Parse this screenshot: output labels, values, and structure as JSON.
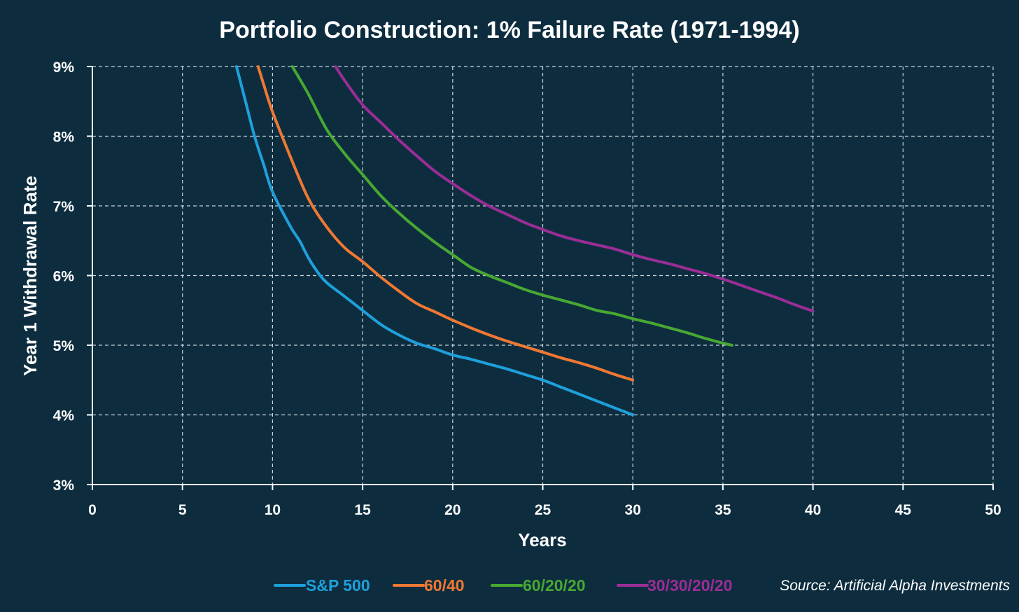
{
  "chart_data": {
    "type": "line",
    "title": "Portfolio Construction: 1% Failure Rate (1971-1994)",
    "xlabel": "Years",
    "ylabel": "Year 1 Withdrawal Rate",
    "xlim": [
      0,
      50
    ],
    "ylim": [
      3,
      9
    ],
    "xticks": [
      0,
      5,
      10,
      15,
      20,
      25,
      30,
      35,
      40,
      45,
      50
    ],
    "yticks": [
      3,
      4,
      5,
      6,
      7,
      8,
      9
    ],
    "ytick_labels": [
      "3%",
      "4%",
      "5%",
      "6%",
      "7%",
      "8%",
      "9%"
    ],
    "grid": true,
    "legend_position": "bottom",
    "source": "Source: Artificial Alpha Investments",
    "series": [
      {
        "name": "S&P 500",
        "color": "#1ea0dc",
        "points": [
          [
            8,
            9.0
          ],
          [
            8.5,
            8.5
          ],
          [
            9,
            8.0
          ],
          [
            9.5,
            7.6
          ],
          [
            10,
            7.2
          ],
          [
            11,
            6.7
          ],
          [
            11.5,
            6.5
          ],
          [
            12,
            6.25
          ],
          [
            12.5,
            6.05
          ],
          [
            13,
            5.9
          ],
          [
            14,
            5.7
          ],
          [
            15,
            5.5
          ],
          [
            16,
            5.3
          ],
          [
            17,
            5.15
          ],
          [
            18,
            5.03
          ],
          [
            19,
            4.95
          ],
          [
            20,
            4.86
          ],
          [
            21,
            4.8
          ],
          [
            22,
            4.73
          ],
          [
            23,
            4.66
          ],
          [
            24,
            4.58
          ],
          [
            25,
            4.5
          ],
          [
            26,
            4.4
          ],
          [
            27,
            4.3
          ],
          [
            28,
            4.2
          ],
          [
            29,
            4.1
          ],
          [
            30,
            4.0
          ]
        ]
      },
      {
        "name": "60/40",
        "color": "#f07832",
        "points": [
          [
            9.2,
            9.0
          ],
          [
            9.5,
            8.75
          ],
          [
            10,
            8.35
          ],
          [
            11,
            7.7
          ],
          [
            12,
            7.1
          ],
          [
            13,
            6.7
          ],
          [
            14,
            6.4
          ],
          [
            15,
            6.2
          ],
          [
            16,
            5.98
          ],
          [
            17,
            5.78
          ],
          [
            18,
            5.6
          ],
          [
            19,
            5.48
          ],
          [
            20,
            5.36
          ],
          [
            21,
            5.25
          ],
          [
            22,
            5.15
          ],
          [
            23,
            5.06
          ],
          [
            24,
            4.98
          ],
          [
            25,
            4.9
          ],
          [
            26,
            4.82
          ],
          [
            27,
            4.75
          ],
          [
            28,
            4.67
          ],
          [
            29,
            4.58
          ],
          [
            30,
            4.5
          ]
        ]
      },
      {
        "name": "60/20/20",
        "color": "#48a832",
        "points": [
          [
            11.1,
            9.0
          ],
          [
            12,
            8.6
          ],
          [
            13,
            8.1
          ],
          [
            14,
            7.75
          ],
          [
            15,
            7.45
          ],
          [
            16,
            7.15
          ],
          [
            17,
            6.9
          ],
          [
            18,
            6.68
          ],
          [
            19,
            6.48
          ],
          [
            20,
            6.3
          ],
          [
            21,
            6.12
          ],
          [
            22,
            6.0
          ],
          [
            23,
            5.9
          ],
          [
            24,
            5.8
          ],
          [
            25,
            5.72
          ],
          [
            26,
            5.65
          ],
          [
            27,
            5.58
          ],
          [
            28,
            5.5
          ],
          [
            29,
            5.45
          ],
          [
            30,
            5.38
          ],
          [
            31,
            5.32
          ],
          [
            32,
            5.25
          ],
          [
            33,
            5.18
          ],
          [
            34,
            5.1
          ],
          [
            35,
            5.03
          ],
          [
            35.5,
            5.0
          ]
        ]
      },
      {
        "name": "30/30/20/20",
        "color": "#9b2d96",
        "points": [
          [
            13.5,
            9.0
          ],
          [
            14,
            8.8
          ],
          [
            15,
            8.45
          ],
          [
            16,
            8.2
          ],
          [
            17,
            7.95
          ],
          [
            18,
            7.72
          ],
          [
            19,
            7.5
          ],
          [
            20,
            7.32
          ],
          [
            21,
            7.15
          ],
          [
            22,
            7.0
          ],
          [
            23,
            6.88
          ],
          [
            24,
            6.76
          ],
          [
            25,
            6.66
          ],
          [
            26,
            6.57
          ],
          [
            27,
            6.5
          ],
          [
            28,
            6.44
          ],
          [
            29,
            6.38
          ],
          [
            30,
            6.3
          ],
          [
            31,
            6.23
          ],
          [
            32,
            6.17
          ],
          [
            33,
            6.1
          ],
          [
            34,
            6.03
          ],
          [
            35,
            5.95
          ],
          [
            36,
            5.86
          ],
          [
            37,
            5.77
          ],
          [
            38,
            5.68
          ],
          [
            39,
            5.58
          ],
          [
            40,
            5.49
          ]
        ]
      }
    ]
  }
}
